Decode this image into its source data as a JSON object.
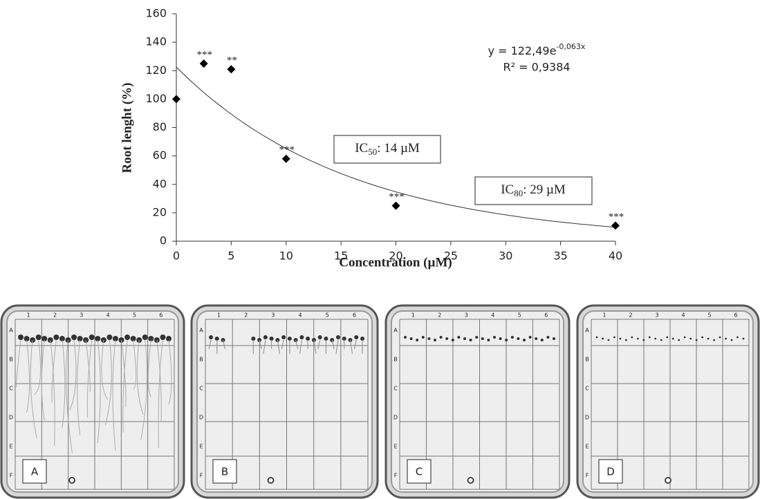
{
  "chart_data": {
    "type": "scatter",
    "x_label": "Concentration (µM)",
    "y_label": "Root lenght (%)",
    "x": [
      0,
      2.5,
      5,
      10,
      20,
      40
    ],
    "values": [
      100,
      125,
      121,
      58,
      25,
      11
    ],
    "annotations": [
      null,
      "***",
      "**",
      "***",
      "***",
      "***"
    ],
    "color": "#000000",
    "xlim": [
      0,
      40
    ],
    "xticks": [
      0,
      5,
      10,
      15,
      20,
      25,
      30,
      35,
      40
    ],
    "ylim": [
      0,
      160
    ],
    "yticks": [
      0,
      20,
      40,
      60,
      80,
      100,
      120,
      140,
      160
    ],
    "trendline": {
      "type": "exponential",
      "a": 122.49,
      "b": -0.063,
      "equation_base": "y = 122,49e",
      "equation_exponent": "-0,063x",
      "r2": "R² = 0,9384"
    },
    "ic50": {
      "prefix": "IC",
      "sub": "50",
      "suffix": ": 14 µM"
    },
    "ic80": {
      "prefix": "IC",
      "sub": "80",
      "suffix": ": 29 µM"
    }
  },
  "plates": {
    "columns": [
      "1",
      "2",
      "3",
      "4",
      "5",
      "6"
    ],
    "rows": [
      "A",
      "B",
      "C",
      "D",
      "E",
      "F"
    ],
    "labels": [
      "A",
      "B",
      "C",
      "D"
    ]
  }
}
